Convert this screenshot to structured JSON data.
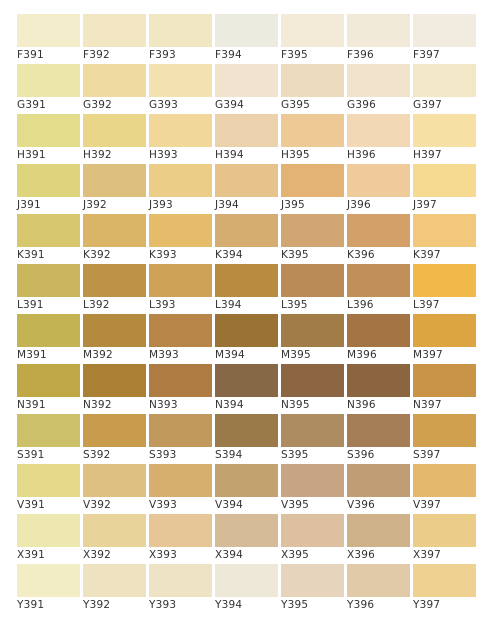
{
  "rows": [
    {
      "codes": [
        "F391",
        "F392",
        "F393",
        "F394",
        "F395",
        "F396",
        "F397"
      ],
      "colors": [
        "#f3edcc",
        "#f2e6c3",
        "#f1e7c2",
        "#ecebdf",
        "#f3ead8",
        "#f1ead9",
        "#f1ecdf"
      ]
    },
    {
      "codes": [
        "G391",
        "G392",
        "G393",
        "G394",
        "G395",
        "G396",
        "G397"
      ],
      "colors": [
        "#ebe6a9",
        "#efdb9f",
        "#f1e2b0",
        "#f1e3cd",
        "#eddbbd",
        "#f2e4cc",
        "#f2e7c7"
      ]
    },
    {
      "codes": [
        "H391",
        "H392",
        "H393",
        "H394",
        "H395",
        "H396",
        "H397"
      ],
      "colors": [
        "#e3dc8b",
        "#ead689",
        "#f1d79a",
        "#ecd1ad",
        "#ecc995",
        "#f3d8b5",
        "#f7e0a3"
      ]
    },
    {
      "codes": [
        "J391",
        "J392",
        "J393",
        "J394",
        "J395",
        "J396",
        "J397"
      ],
      "colors": [
        "#dfd47e",
        "#ddc07d",
        "#ebcd87",
        "#e6c38b",
        "#e2b375",
        "#efca9a",
        "#f6da92"
      ]
    },
    {
      "codes": [
        "K391",
        "K392",
        "K393",
        "K394",
        "K395",
        "K396",
        "K397"
      ],
      "colors": [
        "#d7c870",
        "#dab467",
        "#e5bd6a",
        "#d6ad71",
        "#d2a673",
        "#d3a06a",
        "#f2c97c"
      ]
    },
    {
      "codes": [
        "L391",
        "L392",
        "L393",
        "L394",
        "L395",
        "L396",
        "L397"
      ],
      "colors": [
        "#c9b65d",
        "#bd9348",
        "#cfa357",
        "#b98b41",
        "#ba8b57",
        "#c1905a",
        "#f0b94a"
      ]
    },
    {
      "codes": [
        "M391",
        "M392",
        "M393",
        "M394",
        "M395",
        "M396",
        "M397"
      ],
      "colors": [
        "#c4b353",
        "#b48a3e",
        "#b78547",
        "#9a7234",
        "#a17c46",
        "#a47445",
        "#dca542"
      ]
    },
    {
      "codes": [
        "N391",
        "N392",
        "N393",
        "N394",
        "N395",
        "N396",
        "N397"
      ],
      "colors": [
        "#c0a846",
        "#a98034",
        "#ae7c42",
        "#866846",
        "#8c6643",
        "#8a6540",
        "#c99446"
      ]
    },
    {
      "codes": [
        "S391",
        "S392",
        "S393",
        "S394",
        "S395",
        "S396",
        "S397"
      ],
      "colors": [
        "#cdc06a",
        "#c89c4c",
        "#c2995c",
        "#9b7a4a",
        "#ae8c62",
        "#a47d56",
        "#d1a04e"
      ]
    },
    {
      "codes": [
        "V391",
        "V392",
        "V393",
        "V394",
        "V395",
        "V396",
        "V397"
      ],
      "colors": [
        "#e5d98a",
        "#dec083",
        "#d6af6f",
        "#c2a26f",
        "#c7a582",
        "#c19d76",
        "#e4b86d"
      ]
    },
    {
      "codes": [
        "X391",
        "X392",
        "X393",
        "X394",
        "X395",
        "X396",
        "X397"
      ],
      "colors": [
        "#ede7b0",
        "#e8d49b",
        "#e6c697",
        "#d5bb97",
        "#dcc09f",
        "#cfb18a",
        "#ebcc88"
      ]
    },
    {
      "codes": [
        "Y391",
        "Y392",
        "Y393",
        "Y394",
        "Y395",
        "Y396",
        "Y397"
      ],
      "colors": [
        "#f2edc4",
        "#efe2c0",
        "#efe3c6",
        "#eee8d9",
        "#e6d4bc",
        "#e1caa8",
        "#efd292"
      ]
    }
  ]
}
